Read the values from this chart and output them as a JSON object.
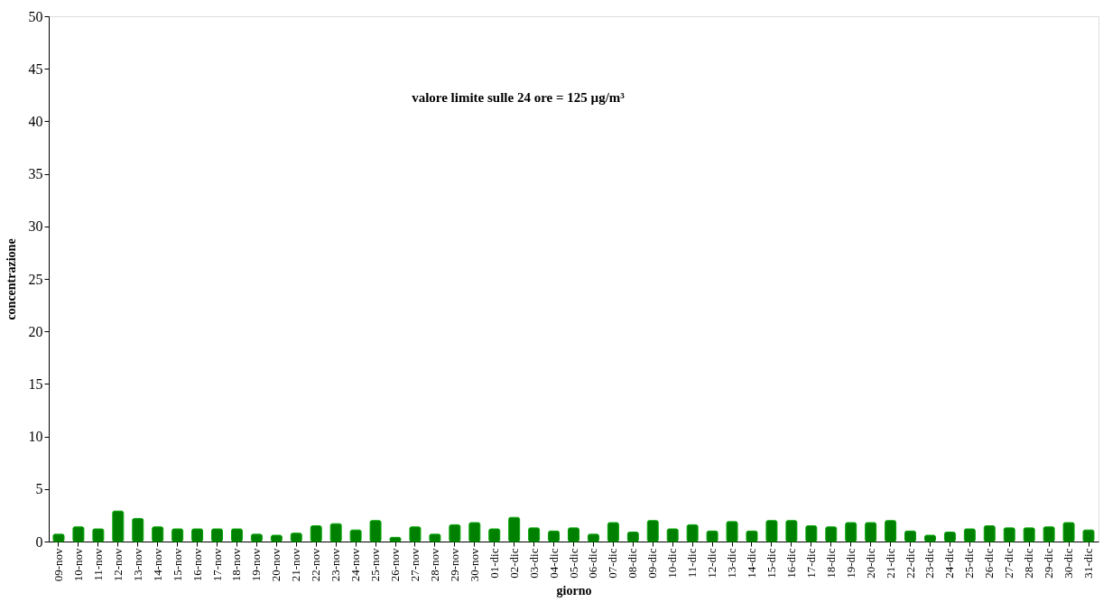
{
  "chart_data": {
    "type": "bar",
    "xlabel": "giorno",
    "ylabel": "concentrazione",
    "annotations": [
      "valore limite sulle 24 ore = 125 µg/m³"
    ],
    "categories": [
      "09-nov",
      "10-nov",
      "11-nov",
      "12-nov",
      "13-nov",
      "14-nov",
      "15-nov",
      "16-nov",
      "17-nov",
      "18-nov",
      "19-nov",
      "20-nov",
      "21-nov",
      "22-nov",
      "23-nov",
      "24-nov",
      "25-nov",
      "26-nov",
      "27-nov",
      "28-nov",
      "29-nov",
      "30-nov",
      "01-dic",
      "02-dic",
      "03-dic",
      "04-dic",
      "05-dic",
      "06-dic",
      "07-dic",
      "08-dic",
      "09-dic",
      "10-dic",
      "11-dic",
      "12-dic",
      "13-dic",
      "14-dic",
      "15-dic",
      "16-dic",
      "17-dic",
      "18-dic",
      "19-dic",
      "20-dic",
      "21-dic",
      "22-dic",
      "23-dic",
      "24-dic",
      "25-dic",
      "26-dic",
      "27-dic",
      "28-dic",
      "29-dic",
      "30-dic",
      "31-dic"
    ],
    "values": [
      0.7,
      1.4,
      1.2,
      2.9,
      2.2,
      1.4,
      1.2,
      1.2,
      1.2,
      1.2,
      0.7,
      0.6,
      0.8,
      1.5,
      1.7,
      1.1,
      2.0,
      0.4,
      1.4,
      0.7,
      1.6,
      1.8,
      1.2,
      2.3,
      1.3,
      1.0,
      1.3,
      0.7,
      1.8,
      0.9,
      2.0,
      1.2,
      1.6,
      1.0,
      1.9,
      1.0,
      2.0,
      2.0,
      1.5,
      1.4,
      1.8,
      1.8,
      2.0,
      1.0,
      0.6,
      0.9,
      1.2,
      1.5,
      1.3,
      1.3,
      1.4,
      1.8,
      1.1
    ],
    "color": "#008000",
    "ylim": [
      0,
      50
    ],
    "yticks": [
      0,
      5,
      10,
      15,
      20,
      25,
      30,
      35,
      40,
      45,
      50
    ],
    "grid": false
  }
}
